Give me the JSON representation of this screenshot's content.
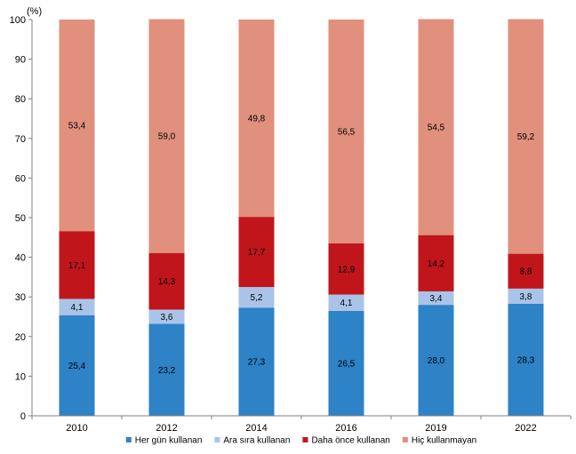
{
  "chart_data": {
    "type": "bar",
    "stacked": true,
    "title": "",
    "xlabel": "",
    "ylabel": "",
    "y_unit_label": "(%)",
    "ylim": [
      0,
      100
    ],
    "yticks": [
      0,
      10,
      20,
      30,
      40,
      50,
      60,
      70,
      80,
      90,
      100
    ],
    "grid": false,
    "legend_position": "bottom",
    "categories": [
      "2010",
      "2012",
      "2014",
      "2016",
      "2019",
      "2022"
    ],
    "series": [
      {
        "name": "Her gün kullanan",
        "color": "#2e82c6",
        "values": [
          25.4,
          23.2,
          27.3,
          26.5,
          28.0,
          28.3
        ],
        "labels": [
          "25,4",
          "23,2",
          "27,3",
          "26,5",
          "28,0",
          "28,3"
        ]
      },
      {
        "name": "Ara sıra kullanan",
        "color": "#a9c4e8",
        "values": [
          4.1,
          3.6,
          5.2,
          4.1,
          3.4,
          3.8
        ],
        "labels": [
          "4,1",
          "3,6",
          "5,2",
          "4,1",
          "3,4",
          "3,8"
        ]
      },
      {
        "name": "Daha önce kullanan",
        "color": "#c0161b",
        "values": [
          17.1,
          14.3,
          17.7,
          12.9,
          14.2,
          8.8
        ],
        "labels": [
          "17,1",
          "14,3",
          "17,7",
          "12,9",
          "14,2",
          "8,8"
        ]
      },
      {
        "name": "Hiç kullanmayan",
        "color": "#e0907c",
        "values": [
          53.4,
          59.0,
          49.8,
          56.5,
          54.5,
          59.2
        ],
        "labels": [
          "53,4",
          "59,0",
          "49,8",
          "56,5",
          "54,5",
          "59,2"
        ]
      }
    ]
  }
}
